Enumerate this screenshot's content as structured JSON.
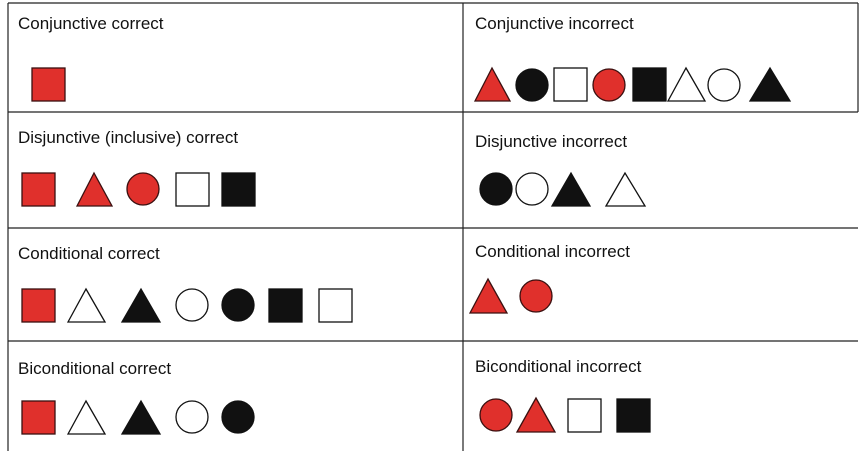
{
  "table": {
    "rows": [
      [
        "Conjunctive correct",
        "Conjunctive incorrect"
      ],
      [
        "Disjunctive (inclusive) correct",
        "Disjunctive incorrect"
      ],
      [
        "Conditional correct",
        "Conditional incorrect"
      ],
      [
        "Biconditional correct",
        "Biconditional incorrect"
      ]
    ]
  }
}
